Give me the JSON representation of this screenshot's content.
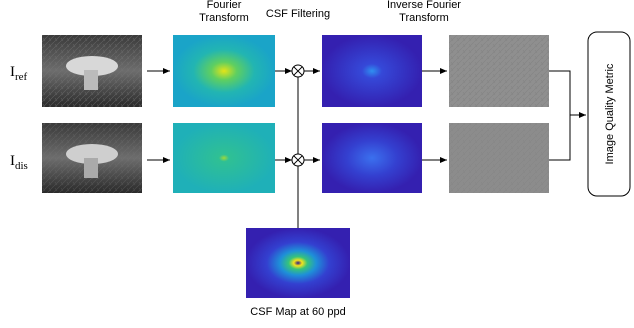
{
  "labels": {
    "fourier_transform": [
      "Fourier",
      "Transform"
    ],
    "csf_filtering": "CSF Filtering",
    "inverse_fourier_transform": [
      "Inverse Fourier",
      "Transform"
    ],
    "input_ref": {
      "symbol": "I",
      "subscript": "ref"
    },
    "input_dis": {
      "symbol": "I",
      "subscript": "dis"
    },
    "metric": "Image Quality Metric",
    "csf_map_caption": "CSF Map at 60 ppd"
  }
}
